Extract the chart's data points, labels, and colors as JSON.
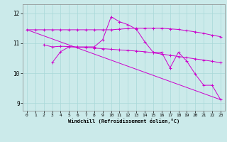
{
  "xlabel": "Windchill (Refroidissement éolien,°C)",
  "background_color": "#cbeaea",
  "grid_color": "#a8d8d8",
  "line_color": "#cc00cc",
  "xlim": [
    -0.5,
    23.5
  ],
  "ylim": [
    8.75,
    12.3
  ],
  "yticks": [
    9,
    10,
    11,
    12
  ],
  "xticks": [
    0,
    1,
    2,
    3,
    4,
    5,
    6,
    7,
    8,
    9,
    10,
    11,
    12,
    13,
    14,
    15,
    16,
    17,
    18,
    19,
    20,
    21,
    22,
    23
  ],
  "line1_x": [
    0,
    1,
    2,
    3,
    4,
    5,
    6,
    7,
    8,
    9,
    10,
    11,
    12,
    13,
    14,
    15,
    16,
    17,
    18,
    19,
    20,
    21,
    22,
    23
  ],
  "line1_y": [
    11.45,
    11.45,
    11.45,
    11.45,
    11.45,
    11.45,
    11.45,
    11.45,
    11.45,
    11.45,
    11.45,
    11.47,
    11.49,
    11.5,
    11.5,
    11.5,
    11.5,
    11.48,
    11.46,
    11.42,
    11.38,
    11.33,
    11.27,
    11.22
  ],
  "line2_x": [
    2,
    3,
    4,
    5,
    6,
    7,
    8,
    9,
    10,
    11,
    12,
    13,
    14,
    15,
    16,
    17,
    18,
    19,
    20,
    21,
    22,
    23
  ],
  "line2_y": [
    10.95,
    10.88,
    10.9,
    10.89,
    10.87,
    10.86,
    10.84,
    10.82,
    10.8,
    10.78,
    10.76,
    10.74,
    10.72,
    10.68,
    10.64,
    10.6,
    10.56,
    10.52,
    10.48,
    10.44,
    10.4,
    10.35
  ],
  "line3_x": [
    3,
    4,
    5,
    6,
    7,
    8,
    9,
    10,
    11,
    12,
    13,
    14,
    15,
    16,
    17,
    18,
    19,
    20,
    21,
    22,
    23
  ],
  "line3_y": [
    10.35,
    10.72,
    10.88,
    10.88,
    10.88,
    10.88,
    11.12,
    11.88,
    11.72,
    11.62,
    11.47,
    11.05,
    10.7,
    10.7,
    10.18,
    10.7,
    10.4,
    9.97,
    9.6,
    9.6,
    9.12
  ],
  "line4_x": [
    0,
    23
  ],
  "line4_y": [
    11.45,
    9.12
  ]
}
